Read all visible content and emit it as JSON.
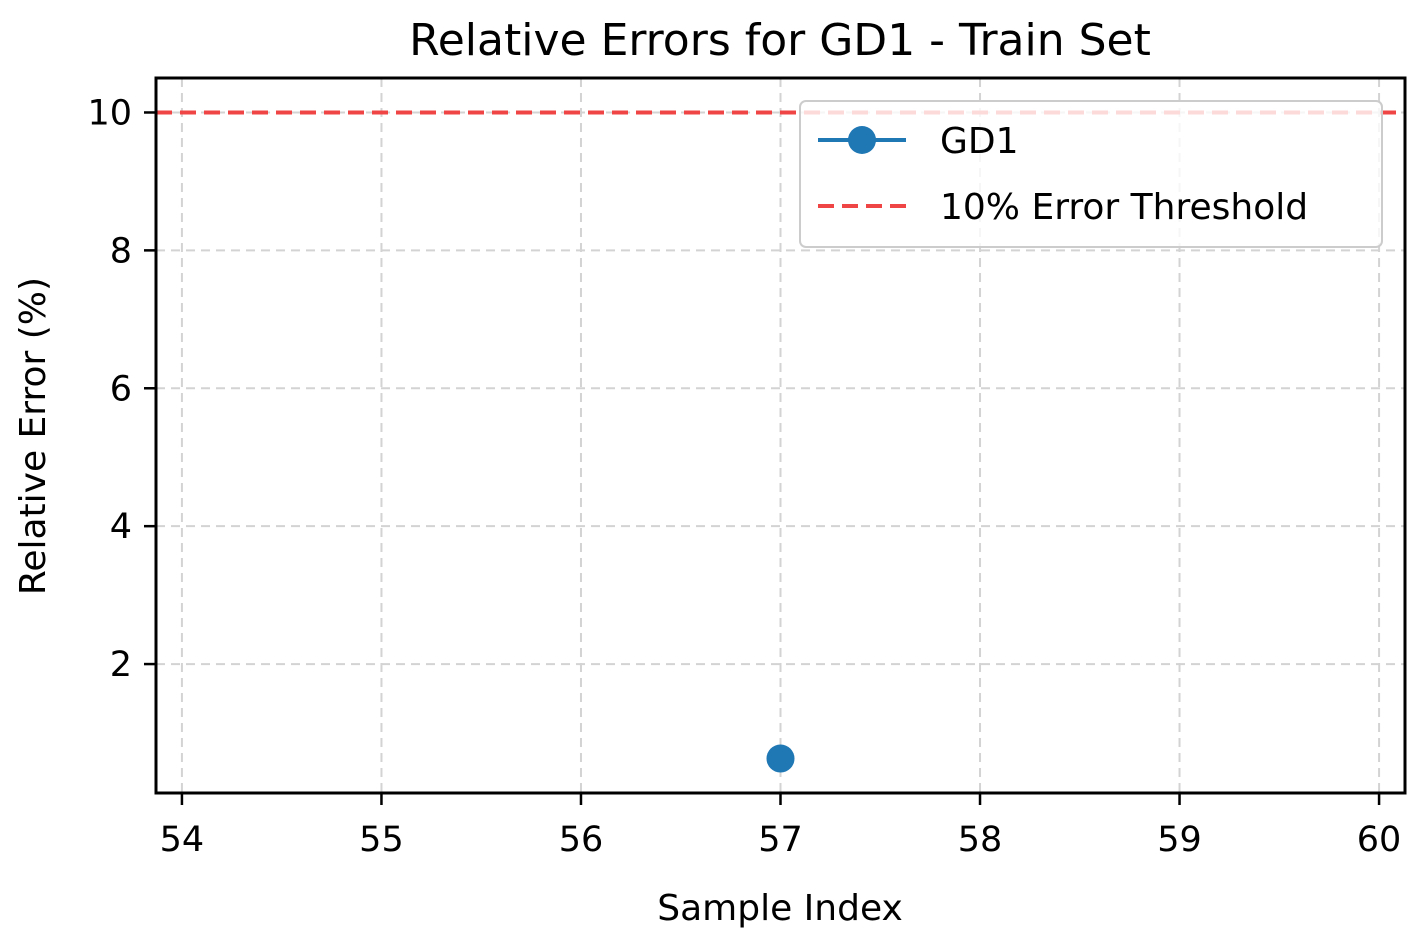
{
  "chart_data": {
    "type": "line",
    "title": "Relative Errors for GD1 - Train Set",
    "xlabel": "Sample Index",
    "ylabel": "Relative Error (%)",
    "xlim": [
      53.87,
      60.13
    ],
    "ylim": [
      0.13,
      10.5
    ],
    "x_ticks": [
      54,
      55,
      56,
      57,
      58,
      59,
      60
    ],
    "y_ticks": [
      2,
      4,
      6,
      8,
      10
    ],
    "grid": true,
    "legend_position": "top-right",
    "series": [
      {
        "name": "GD1",
        "x": [
          57
        ],
        "y": [
          0.63
        ],
        "color": "#1f77b4",
        "marker": "circle",
        "line_style": "solid"
      }
    ],
    "reference_lines": [
      {
        "name": "10% Error Threshold",
        "y": 10,
        "color": "#f04545",
        "line_style": "dashed"
      }
    ]
  }
}
